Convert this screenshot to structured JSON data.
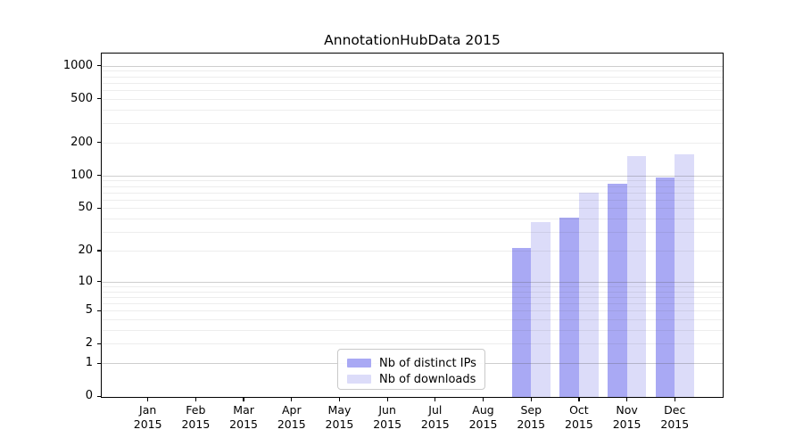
{
  "chart_data": {
    "type": "bar",
    "title": "AnnotationHubData 2015",
    "categories": [
      "Jan",
      "Feb",
      "Mar",
      "Apr",
      "May",
      "Jun",
      "Jul",
      "Aug",
      "Sep",
      "Oct",
      "Nov",
      "Dec"
    ],
    "x_tick_year": "2015",
    "series": [
      {
        "name": "Nb of distinct IPs",
        "key": "ips",
        "color": "#a9a9f4",
        "values": [
          0,
          0,
          0,
          0,
          0,
          0,
          0,
          0,
          21,
          41,
          84,
          95
        ]
      },
      {
        "name": "Nb of downloads",
        "key": "downloads",
        "color": "#dcdcf9",
        "values": [
          0,
          0,
          0,
          0,
          0,
          0,
          0,
          0,
          37,
          70,
          151,
          155
        ]
      }
    ],
    "xlabel": "",
    "ylabel": "",
    "y_axis": {
      "scale": "log10(1+x)",
      "tick_labels": [
        0,
        1,
        2,
        5,
        10,
        20,
        50,
        100,
        200,
        500,
        1000
      ],
      "major_gridlines": [
        1,
        10,
        100,
        1000
      ],
      "minor_gridlines": [
        2,
        3,
        4,
        5,
        6,
        7,
        8,
        9,
        20,
        30,
        40,
        50,
        60,
        70,
        80,
        90,
        200,
        300,
        400,
        500,
        600,
        700,
        800,
        900
      ],
      "ylim": [
        0,
        1000
      ]
    },
    "grid": true,
    "legend_position": "inside-bottom-center",
    "colors": {
      "axis": "#000000",
      "text": "#000000",
      "background": "#ffffff",
      "major_grid": "#c8c8c8",
      "minor_grid": "#ebebeb"
    }
  }
}
